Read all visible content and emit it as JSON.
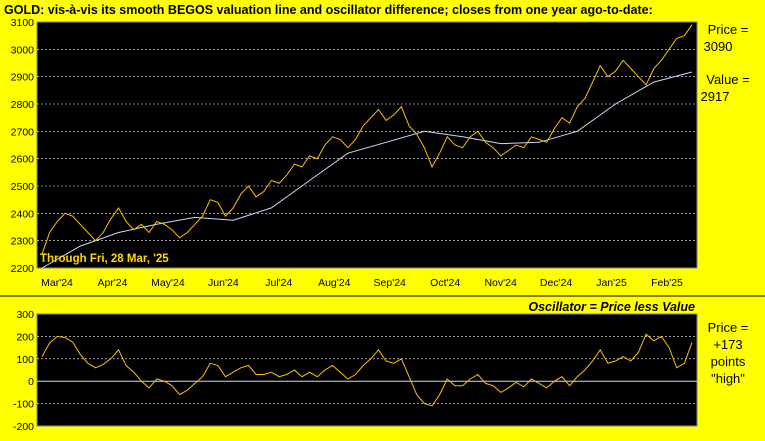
{
  "chart_data": [
    {
      "type": "line",
      "title": "GOLD:  vis-à-vis its smooth BEGOS valuation line and oscillator difference; closes from one year ago-to-date:",
      "annotation": "Through Fri, 28 Mar, '25",
      "ylim": [
        2200,
        3100
      ],
      "y_ticks": [
        2200,
        2300,
        2400,
        2500,
        2600,
        2700,
        2800,
        2900,
        3000,
        3100
      ],
      "x_ticks": [
        "Mar'24",
        "Apr'24",
        "May'24",
        "Jun'24",
        "Jul'24",
        "Aug'24",
        "Sep'24",
        "Oct'24",
        "Nov'24",
        "Dec'24",
        "Jan'25",
        "Feb'25"
      ],
      "grid": true,
      "colors": {
        "price": "#FFC000",
        "value": "#C8D8FF",
        "plot_bg": "#000000",
        "page_bg": "#FFFF00",
        "grid": "#FFFFFF"
      },
      "series": [
        {
          "name": "Price",
          "x": [
            0,
            3,
            6,
            9,
            12,
            15,
            18,
            21,
            24,
            27,
            30,
            33,
            36,
            39,
            42,
            45,
            48,
            51,
            54,
            57,
            60,
            63,
            66,
            69,
            72,
            75,
            78,
            81,
            84,
            87,
            90,
            93,
            96,
            99,
            102,
            105,
            108,
            111,
            114,
            117,
            120,
            123,
            126,
            129,
            132,
            135,
            138,
            141,
            144,
            147,
            150,
            153,
            156,
            159,
            162,
            165,
            168,
            171,
            174,
            177,
            180,
            183,
            186,
            189,
            192,
            195,
            198,
            201,
            204,
            207,
            210,
            213,
            216,
            219,
            222,
            225,
            228,
            231,
            234,
            237,
            240,
            243,
            246,
            249,
            252,
            255
          ],
          "values": [
            2250,
            2330,
            2370,
            2400,
            2390,
            2360,
            2330,
            2300,
            2330,
            2380,
            2420,
            2370,
            2340,
            2360,
            2330,
            2370,
            2360,
            2340,
            2310,
            2330,
            2360,
            2390,
            2450,
            2440,
            2390,
            2420,
            2470,
            2500,
            2460,
            2480,
            2520,
            2510,
            2540,
            2580,
            2570,
            2610,
            2600,
            2650,
            2680,
            2670,
            2640,
            2670,
            2720,
            2750,
            2780,
            2740,
            2760,
            2790,
            2720,
            2690,
            2640,
            2570,
            2620,
            2680,
            2650,
            2640,
            2680,
            2700,
            2660,
            2640,
            2610,
            2630,
            2650,
            2640,
            2680,
            2670,
            2660,
            2710,
            2750,
            2730,
            2790,
            2820,
            2880,
            2940,
            2900,
            2920,
            2960,
            2930,
            2900,
            2870,
            2930,
            2960,
            3000,
            3040,
            3050,
            3090
          ]
        },
        {
          "name": "Value",
          "x": [
            0,
            15,
            30,
            45,
            60,
            75,
            90,
            105,
            120,
            135,
            150,
            165,
            180,
            195,
            210,
            225,
            240,
            255
          ],
          "values": [
            2180,
            2280,
            2330,
            2360,
            2385,
            2375,
            2420,
            2520,
            2620,
            2660,
            2700,
            2680,
            2655,
            2660,
            2700,
            2800,
            2880,
            2917
          ]
        }
      ],
      "labels": {
        "price_label": "Price =",
        "price_value": "3090",
        "value_label": "Value =",
        "value_value": "2917"
      }
    },
    {
      "type": "line",
      "title": "Oscillator = Price less Value",
      "ylim": [
        -200,
        300
      ],
      "y_ticks": [
        -200,
        -100,
        0,
        100,
        200,
        300
      ],
      "grid": true,
      "colors": {
        "osc": "#FFC000",
        "zero": "#C8D8FF"
      },
      "series": [
        {
          "name": "Oscillator",
          "x": [
            0,
            3,
            6,
            9,
            12,
            15,
            18,
            21,
            24,
            27,
            30,
            33,
            36,
            39,
            42,
            45,
            48,
            51,
            54,
            57,
            60,
            63,
            66,
            69,
            72,
            75,
            78,
            81,
            84,
            87,
            90,
            93,
            96,
            99,
            102,
            105,
            108,
            111,
            114,
            117,
            120,
            123,
            126,
            129,
            132,
            135,
            138,
            141,
            144,
            147,
            150,
            153,
            156,
            159,
            162,
            165,
            168,
            171,
            174,
            177,
            180,
            183,
            186,
            189,
            192,
            195,
            198,
            201,
            204,
            207,
            210,
            213,
            216,
            219,
            222,
            225,
            228,
            231,
            234,
            237,
            240,
            243,
            246,
            249,
            252,
            255
          ],
          "values": [
            110,
            170,
            200,
            195,
            175,
            120,
            80,
            60,
            75,
            100,
            140,
            70,
            40,
            0,
            -30,
            10,
            0,
            -20,
            -60,
            -40,
            -10,
            20,
            80,
            70,
            20,
            40,
            60,
            70,
            30,
            30,
            40,
            20,
            30,
            50,
            20,
            40,
            20,
            50,
            70,
            40,
            10,
            30,
            70,
            100,
            140,
            90,
            80,
            100,
            20,
            -60,
            -100,
            -110,
            -60,
            10,
            -20,
            -20,
            10,
            30,
            -10,
            -20,
            -50,
            -30,
            -5,
            -25,
            10,
            -10,
            -30,
            0,
            20,
            -20,
            20,
            50,
            90,
            140,
            80,
            90,
            110,
            90,
            130,
            210,
            180,
            200,
            150,
            60,
            80,
            173
          ]
        }
      ],
      "labels": {
        "line1": "Price =",
        "line2": "+173",
        "line3": "points",
        "line4": "\"high\""
      }
    }
  ]
}
